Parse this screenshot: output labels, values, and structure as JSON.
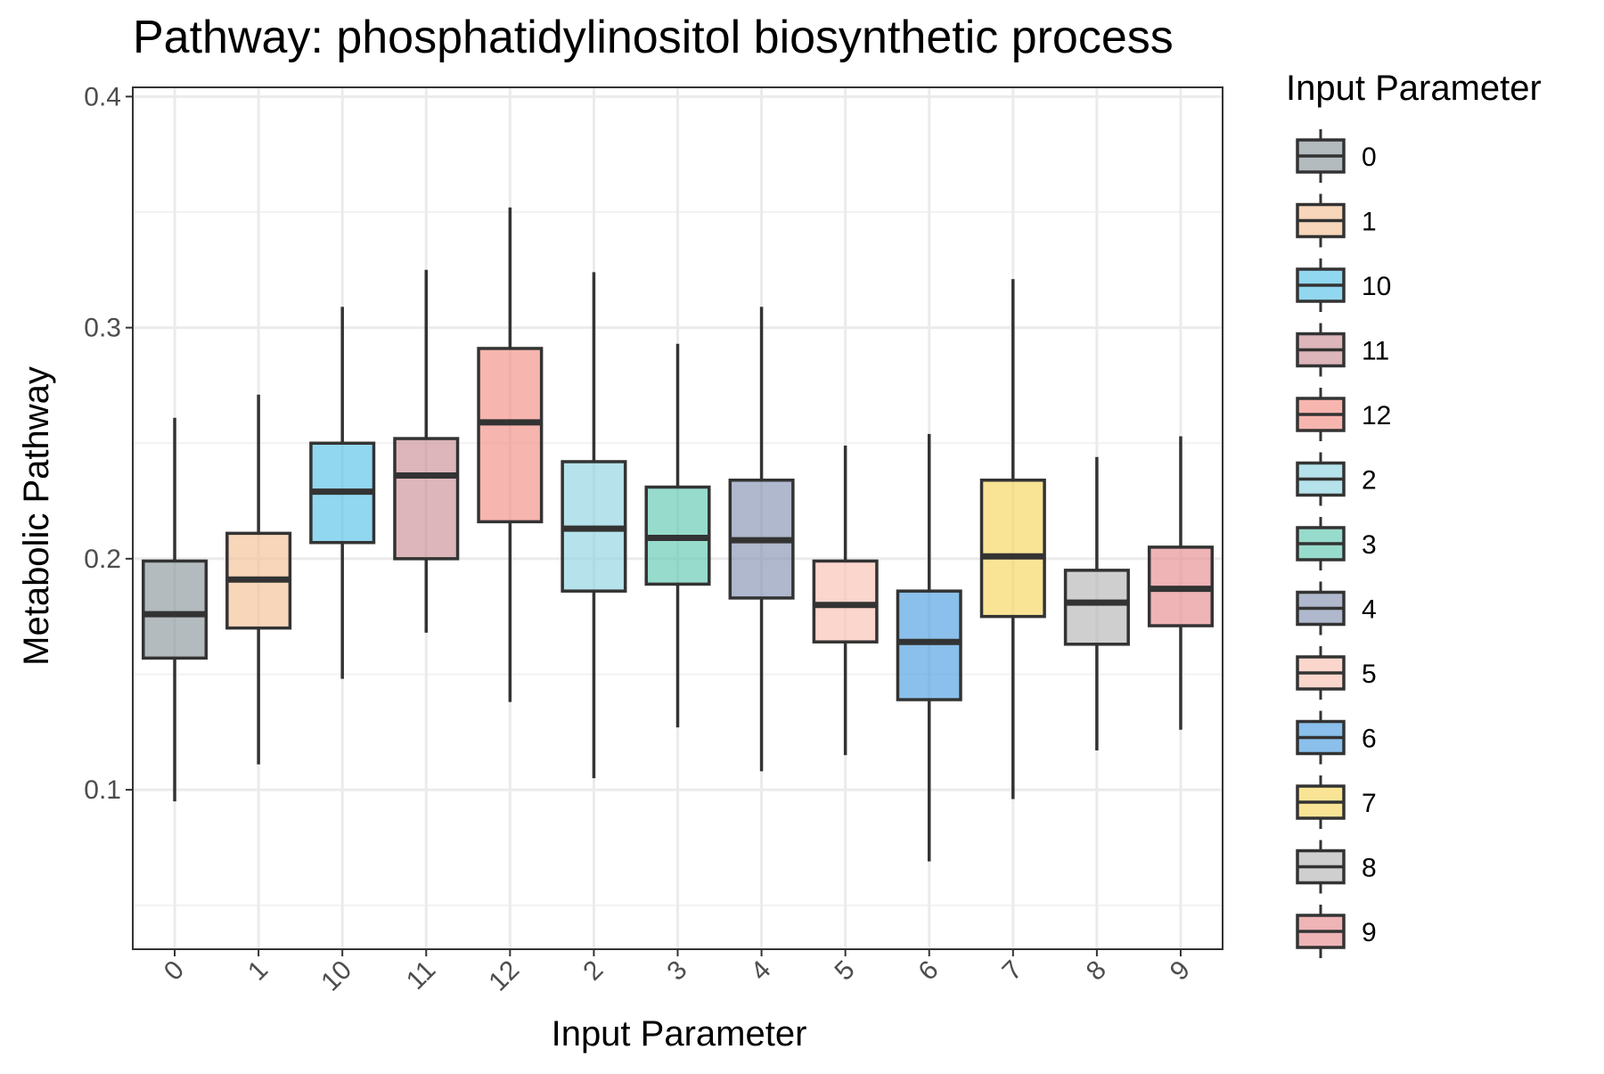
{
  "chart_data": {
    "type": "box",
    "title": "Pathway: phosphatidylinositol biosynthetic process",
    "xlabel": "Input Parameter",
    "ylabel": "Metabolic Pathway",
    "ylim": [
      0.031,
      0.404
    ],
    "y_ticks": [
      0.1,
      0.2,
      0.3,
      0.4
    ],
    "y_tick_labels": [
      "0.1",
      "0.2",
      "0.3",
      "0.4"
    ],
    "y_minor_ticks": [
      0.05,
      0.15,
      0.25,
      0.35
    ],
    "grid": true,
    "legend": {
      "title": "Input Parameter",
      "position": "right"
    },
    "categories": [
      "0",
      "1",
      "10",
      "11",
      "12",
      "2",
      "3",
      "4",
      "5",
      "6",
      "7",
      "8",
      "9"
    ],
    "colors": [
      "#8a979c",
      "#f2c095",
      "#56c2e6",
      "#c98f95",
      "#f28e84",
      "#8dd3e0",
      "#5fc8b0",
      "#8492b2",
      "#f7c0b0",
      "#4b9ee0",
      "#f5d55b",
      "#b6b6b6",
      "#e58c8f"
    ],
    "box_fill_opacity": 0.65,
    "boxes": [
      {
        "category": "0",
        "whisker_low": 0.095,
        "q1": 0.157,
        "median": 0.176,
        "q3": 0.199,
        "whisker_high": 0.261
      },
      {
        "category": "1",
        "whisker_low": 0.111,
        "q1": 0.17,
        "median": 0.191,
        "q3": 0.211,
        "whisker_high": 0.271
      },
      {
        "category": "10",
        "whisker_low": 0.148,
        "q1": 0.207,
        "median": 0.229,
        "q3": 0.25,
        "whisker_high": 0.309
      },
      {
        "category": "11",
        "whisker_low": 0.168,
        "q1": 0.2,
        "median": 0.236,
        "q3": 0.252,
        "whisker_high": 0.325
      },
      {
        "category": "12",
        "whisker_low": 0.138,
        "q1": 0.216,
        "median": 0.259,
        "q3": 0.291,
        "whisker_high": 0.352
      },
      {
        "category": "2",
        "whisker_low": 0.105,
        "q1": 0.186,
        "median": 0.213,
        "q3": 0.242,
        "whisker_high": 0.324
      },
      {
        "category": "3",
        "whisker_low": 0.127,
        "q1": 0.189,
        "median": 0.209,
        "q3": 0.231,
        "whisker_high": 0.293
      },
      {
        "category": "4",
        "whisker_low": 0.108,
        "q1": 0.183,
        "median": 0.208,
        "q3": 0.234,
        "whisker_high": 0.309
      },
      {
        "category": "5",
        "whisker_low": 0.115,
        "q1": 0.164,
        "median": 0.18,
        "q3": 0.199,
        "whisker_high": 0.249
      },
      {
        "category": "6",
        "whisker_low": 0.069,
        "q1": 0.139,
        "median": 0.164,
        "q3": 0.186,
        "whisker_high": 0.254
      },
      {
        "category": "7",
        "whisker_low": 0.096,
        "q1": 0.175,
        "median": 0.201,
        "q3": 0.234,
        "whisker_high": 0.321
      },
      {
        "category": "8",
        "whisker_low": 0.117,
        "q1": 0.163,
        "median": 0.181,
        "q3": 0.195,
        "whisker_high": 0.244
      },
      {
        "category": "9",
        "whisker_low": 0.126,
        "q1": 0.171,
        "median": 0.187,
        "q3": 0.205,
        "whisker_high": 0.253
      }
    ]
  }
}
